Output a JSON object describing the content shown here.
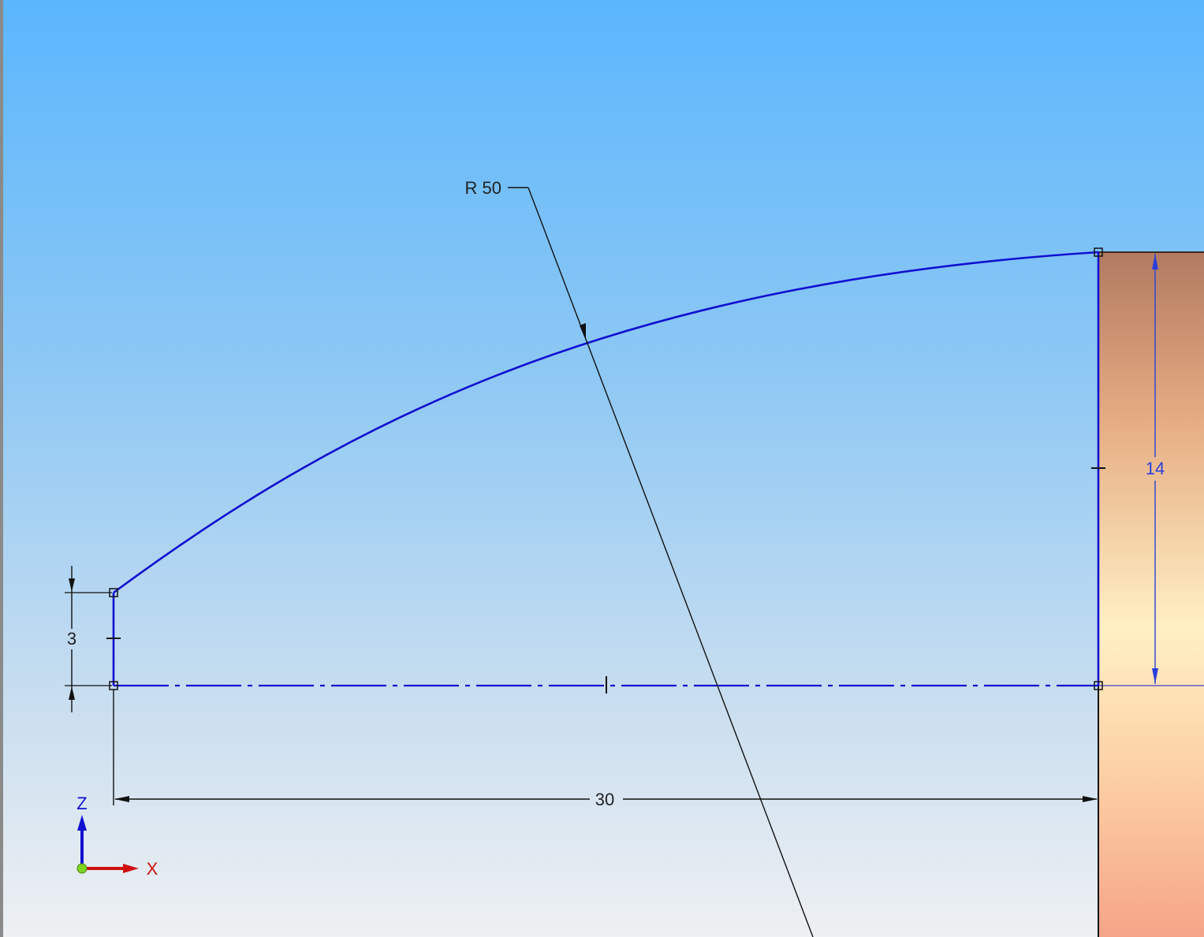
{
  "dimensions": {
    "radius_label": "R 50",
    "length_label": "30",
    "height_label": "14",
    "offset_label": "3"
  },
  "triad": {
    "z_label": "Z",
    "x_label": "X"
  },
  "colors": {
    "sketch_curve": "#1010d0",
    "dimension_line": "#101010",
    "driven_dimension": "#2a3fd8",
    "axis_z": "#1010d0",
    "axis_x": "#d01010",
    "origin": "#7ed320",
    "solid_face_top": "#b27a60",
    "solid_face_mid": "#fff0c4",
    "solid_face_bottom": "#f5a488"
  }
}
